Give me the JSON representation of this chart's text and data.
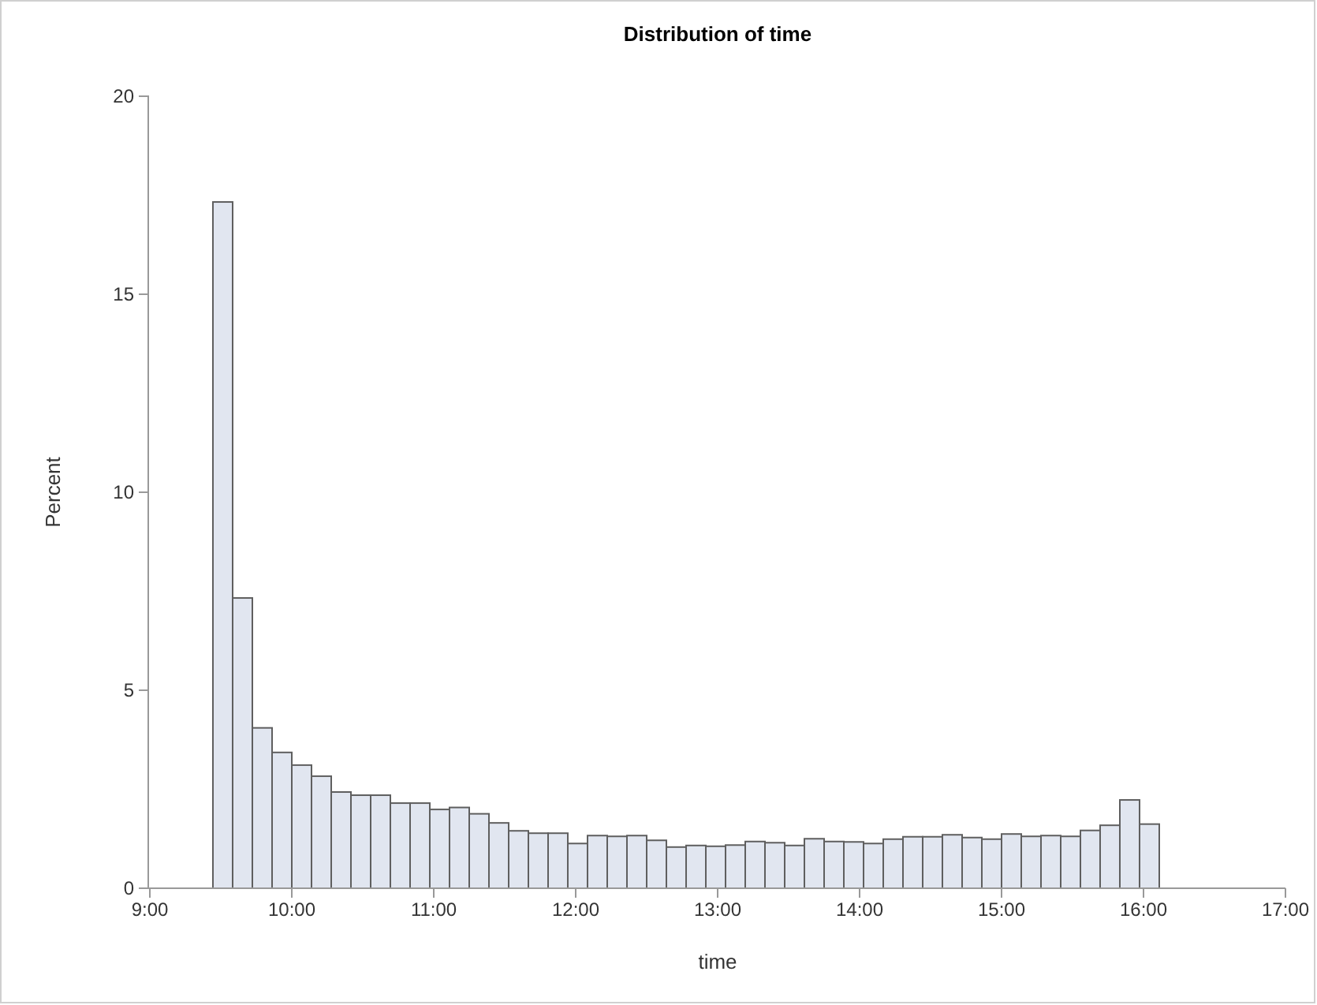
{
  "chart_data": {
    "type": "histogram",
    "title": "Distribution of time",
    "xlabel": "time",
    "ylabel": "Percent",
    "color": "#e1e6f0",
    "bins": [
      9.4444,
      9.5833,
      9.7222,
      9.8611,
      10,
      10.1389,
      10.2778,
      10.4167,
      10.5556,
      10.6944,
      10.8333,
      10.9722,
      11.1111,
      11.25,
      11.3889,
      11.5278,
      11.6667,
      11.8056,
      11.9444,
      12.0833,
      12.2222,
      12.3611,
      12.5,
      12.6389,
      12.7778,
      12.9167,
      13.0556,
      13.1944,
      13.3333,
      13.4722,
      13.6111,
      13.75,
      13.8889,
      14.0278,
      14.1667,
      14.3056,
      14.4444,
      14.5833,
      14.7222,
      14.8611,
      15,
      15.1389,
      15.2778,
      15.4167,
      15.5556,
      15.6944,
      15.8333,
      15.9722,
      16.1111
    ],
    "values": [
      17.33,
      7.33,
      4.05,
      3.43,
      3.11,
      2.83,
      2.43,
      2.35,
      2.35,
      2.15,
      2.15,
      1.99,
      2.04,
      1.88,
      1.65,
      1.45,
      1.39,
      1.39,
      1.13,
      1.33,
      1.31,
      1.33,
      1.21,
      1.04,
      1.08,
      1.06,
      1.09,
      1.18,
      1.15,
      1.08,
      1.25,
      1.18,
      1.17,
      1.13,
      1.24,
      1.3,
      1.3,
      1.35,
      1.28,
      1.24,
      1.37,
      1.31,
      1.33,
      1.31,
      1.46,
      1.59,
      2.23,
      1.62
    ],
    "xlim": [
      9,
      17
    ],
    "xticks": [
      {
        "value": 9,
        "label": "9:00"
      },
      {
        "value": 10,
        "label": "10:00"
      },
      {
        "value": 11,
        "label": "11:00"
      },
      {
        "value": 12,
        "label": "12:00"
      },
      {
        "value": 13,
        "label": "13:00"
      },
      {
        "value": 14,
        "label": "14:00"
      },
      {
        "value": 15,
        "label": "15:00"
      },
      {
        "value": 16,
        "label": "16:00"
      },
      {
        "value": 17,
        "label": "17:00"
      }
    ],
    "ylim": [
      0,
      20
    ],
    "yticks": [
      0,
      5,
      10,
      15,
      20
    ],
    "grid": false
  }
}
